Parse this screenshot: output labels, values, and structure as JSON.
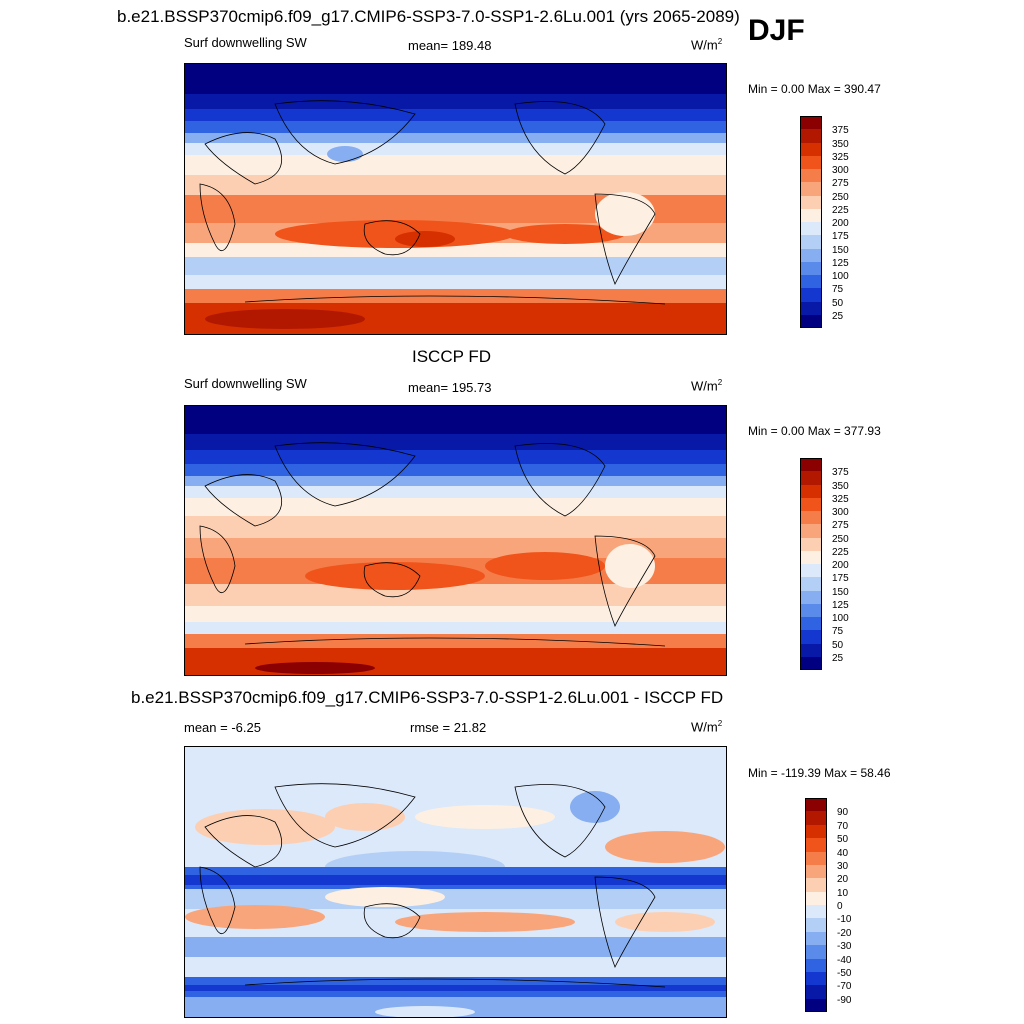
{
  "header": {
    "main_title": "b.e21.BSSP370cmip6.f09_g17.CMIP6-SSP3-7.0-SSP1-2.6Lu.001 (yrs 2065-2089)",
    "season": "DJF"
  },
  "chart_data": [
    {
      "type": "heatmap",
      "title": "",
      "subtitle_left": "Surf downwelling SW",
      "mean_text": "mean= 189.48",
      "units": "W/m",
      "units_sup": "2",
      "minmax_text": "Min =   0.00 Max = 390.47",
      "min": 0.0,
      "max": 390.47,
      "colorbar_levels": [
        "375",
        "350",
        "325",
        "300",
        "275",
        "250",
        "225",
        "200",
        "175",
        "150",
        "125",
        "100",
        "75",
        "50",
        "25"
      ],
      "colors": [
        "#8b0000",
        "#b21800",
        "#d63000",
        "#f0541a",
        "#f57d4a",
        "#f9a57b",
        "#fccfb2",
        "#fdf0e2",
        "#dce9fa",
        "#b3cff6",
        "#86aef0",
        "#5a8bea",
        "#2f63e2",
        "#1437cf",
        "#0819a8",
        "#000080"
      ]
    },
    {
      "type": "heatmap",
      "title": "ISCCP FD",
      "subtitle_left": "Surf downwelling SW",
      "mean_text": "mean= 195.73",
      "units": "W/m",
      "units_sup": "2",
      "minmax_text": "Min =   0.00 Max = 377.93",
      "min": 0.0,
      "max": 377.93,
      "colorbar_levels": [
        "375",
        "350",
        "325",
        "300",
        "275",
        "250",
        "225",
        "200",
        "175",
        "150",
        "125",
        "100",
        "75",
        "50",
        "25"
      ],
      "colors": [
        "#8b0000",
        "#b21800",
        "#d63000",
        "#f0541a",
        "#f57d4a",
        "#f9a57b",
        "#fccfb2",
        "#fdf0e2",
        "#dce9fa",
        "#b3cff6",
        "#86aef0",
        "#5a8bea",
        "#2f63e2",
        "#1437cf",
        "#0819a8",
        "#000080"
      ]
    },
    {
      "type": "heatmap",
      "title": "b.e21.BSSP370cmip6.f09_g17.CMIP6-SSP3-7.0-SSP1-2.6Lu.001 - ISCCP FD",
      "subtitle_left": "mean =  -6.25",
      "mean_text": "rmse =  21.82",
      "units": "W/m",
      "units_sup": "2",
      "minmax_text": "Min = -119.39 Max =  58.46",
      "min": -119.39,
      "max": 58.46,
      "colorbar_levels": [
        "90",
        "70",
        "50",
        "40",
        "30",
        "20",
        "10",
        "0",
        "-10",
        "-20",
        "-30",
        "-40",
        "-50",
        "-70",
        "-90"
      ],
      "colors": [
        "#8b0000",
        "#b21800",
        "#d63000",
        "#f0541a",
        "#f57d4a",
        "#f9a57b",
        "#fccfb2",
        "#fdf0e2",
        "#dce9fa",
        "#b3cff6",
        "#86aef0",
        "#5a8bea",
        "#2f63e2",
        "#1437cf",
        "#0819a8",
        "#000080"
      ]
    }
  ]
}
